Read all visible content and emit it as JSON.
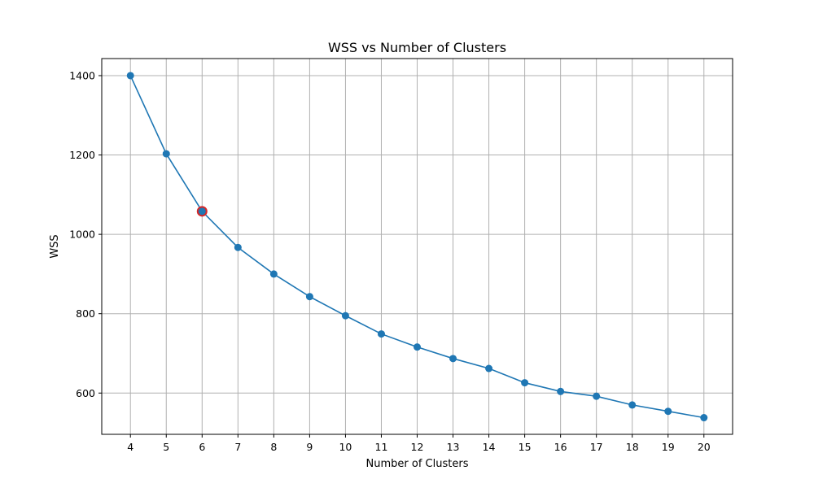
{
  "chart_data": {
    "type": "line",
    "title": "WSS vs Number of Clusters",
    "xlabel": "Number of Clusters",
    "ylabel": "WSS",
    "x": [
      4,
      5,
      6,
      7,
      8,
      9,
      10,
      11,
      12,
      13,
      14,
      15,
      16,
      17,
      18,
      19,
      20
    ],
    "series": [
      {
        "values": [
          1400,
          1203,
          1058,
          967,
          900,
          843,
          795,
          749,
          716,
          687,
          662,
          626,
          604,
          592,
          570,
          554,
          538
        ],
        "color": "#1f77b4",
        "marker": "circle"
      }
    ],
    "highlight": {
      "x": 6,
      "y": 1058,
      "color": "#d62728"
    },
    "xlim": [
      3.2,
      20.8
    ],
    "ylim": [
      496,
      1443
    ],
    "xticks": [
      4,
      5,
      6,
      7,
      8,
      9,
      10,
      11,
      12,
      13,
      14,
      15,
      16,
      17,
      18,
      19,
      20
    ],
    "yticks": [
      600,
      800,
      1000,
      1200,
      1400
    ],
    "grid": true
  }
}
